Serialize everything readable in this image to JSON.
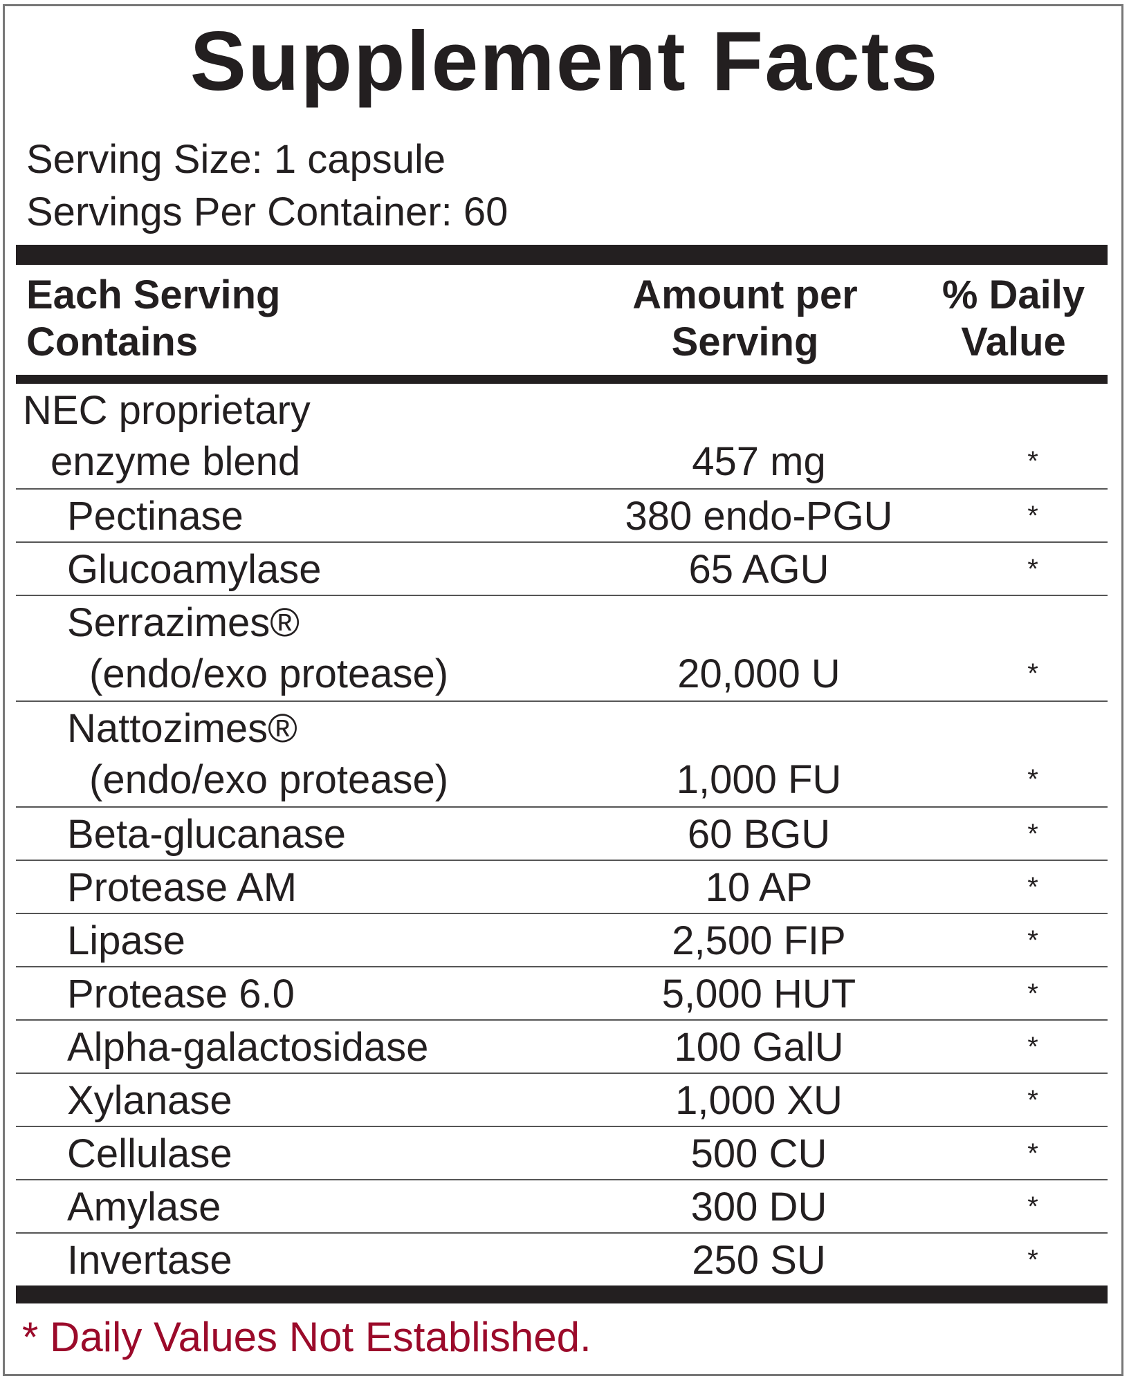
{
  "title": "Supplement Facts",
  "serving_size": "Serving Size: 1 capsule",
  "servings_per_container": "Servings Per Container: 60",
  "header": {
    "col1_line1": "Each Serving",
    "col1_line2": "Contains",
    "col2_line1": "Amount per",
    "col2_line2": "Serving",
    "col3_line1": "% Daily",
    "col3_line2": "Value"
  },
  "rows": [
    {
      "name": "NEC proprietary",
      "name2": "enzyme blend",
      "amount": "457 mg",
      "dv": "*"
    },
    {
      "name": "Pectinase",
      "amount": "380 endo-PGU",
      "dv": "*"
    },
    {
      "name": "Glucoamylase",
      "amount": "65 AGU",
      "dv": "*"
    },
    {
      "name": "Serrazimes®",
      "name2": "(endo/exo protease)",
      "amount": "20,000 U",
      "dv": "*"
    },
    {
      "name": "Nattozimes®",
      "name2": "(endo/exo protease)",
      "amount": "1,000 FU",
      "dv": "*"
    },
    {
      "name": "Beta-glucanase",
      "amount": "60 BGU",
      "dv": "*"
    },
    {
      "name": "Protease AM",
      "amount": "10 AP",
      "dv": "*"
    },
    {
      "name": "Lipase",
      "amount": "2,500 FIP",
      "dv": "*"
    },
    {
      "name": "Protease 6.0",
      "amount": "5,000 HUT",
      "dv": "*"
    },
    {
      "name": "Alpha-galactosidase",
      "amount": "100 GalU",
      "dv": "*"
    },
    {
      "name": "Xylanase",
      "amount": "1,000 XU",
      "dv": "*"
    },
    {
      "name": "Cellulase",
      "amount": "500 CU",
      "dv": "*"
    },
    {
      "name": "Amylase",
      "amount": "300 DU",
      "dv": "*"
    },
    {
      "name": "Invertase",
      "amount": "250 SU",
      "dv": "*"
    }
  ],
  "footnote": "* Daily Values Not Established.",
  "colors": {
    "text": "#231f20",
    "footnote": "#9b0a2a"
  }
}
